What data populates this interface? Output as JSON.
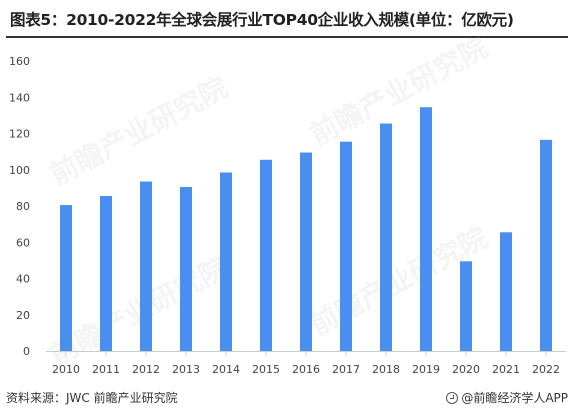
{
  "title": "图表5：2010-2022年全球会展行业TOP40企业收入规模(单位：亿欧元)",
  "footer": {
    "source": "资料来源：JWC 前瞻产业研究院",
    "brand": "@前瞻经济学人APP"
  },
  "watermark": "前瞻产业研究院",
  "colors": {
    "bar": "#4a8ef0",
    "axis": "#cccccc",
    "tick_text": "#444444"
  },
  "chart_data": {
    "type": "bar",
    "title": "图表5：2010-2022年全球会展行业TOP40企业收入规模(单位：亿欧元)",
    "xlabel": "",
    "ylabel": "",
    "categories": [
      "2010",
      "2011",
      "2012",
      "2013",
      "2014",
      "2015",
      "2016",
      "2017",
      "2018",
      "2019",
      "2020",
      "2021",
      "2022"
    ],
    "values": [
      80.5,
      85.5,
      93.5,
      90.5,
      98.5,
      105.5,
      109.5,
      115.5,
      125.5,
      134.5,
      49.5,
      65.5,
      116.5
    ],
    "ylim": [
      0,
      160
    ],
    "yticks": [
      0,
      20,
      40,
      60,
      80,
      100,
      120,
      140,
      160
    ],
    "grid": false,
    "legend": "none"
  }
}
